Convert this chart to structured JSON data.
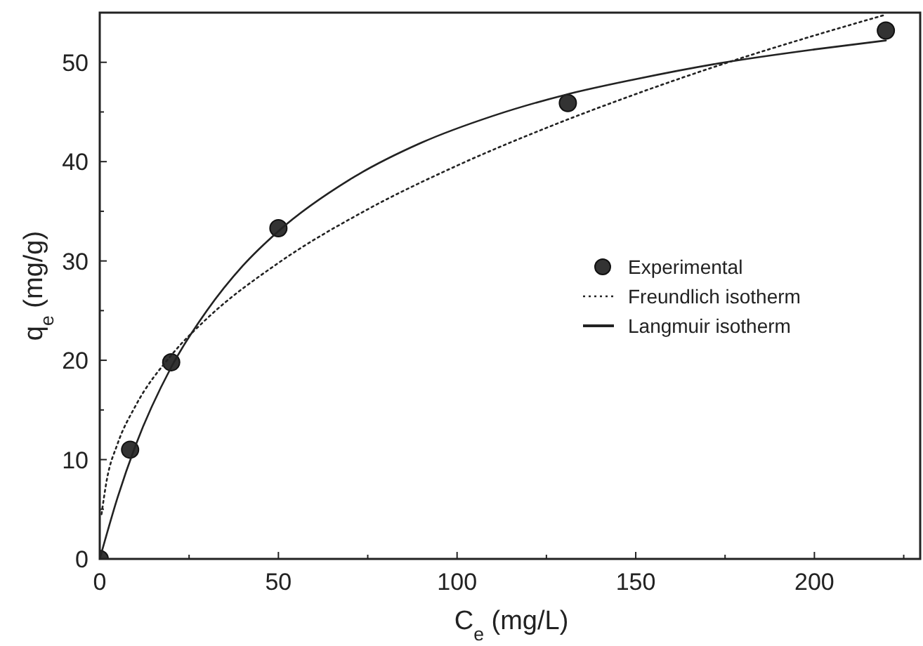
{
  "chart_data": {
    "type": "scatter",
    "xlabel": "C$_{e}$ (mg/L)",
    "ylabel": "q$_{e}$ (mg/g)",
    "xlim": [
      0,
      230
    ],
    "ylim": [
      0,
      55
    ],
    "xticks": [
      0,
      {
        "value": 25,
        "label": null
      },
      50,
      {
        "value": 75,
        "label": null
      },
      100,
      {
        "value": 125,
        "label": null
      },
      150,
      {
        "value": 175,
        "label": null
      },
      200,
      {
        "value": 225,
        "label": null
      }
    ],
    "yticks": [
      0,
      {
        "value": 5,
        "label": null
      },
      10,
      {
        "value": 15,
        "label": null
      },
      20,
      {
        "value": 25,
        "label": null
      },
      30,
      {
        "value": 35,
        "label": null
      },
      40,
      {
        "value": 45,
        "label": null
      },
      50
    ],
    "grid": false,
    "legend": "right",
    "series": [
      {
        "name": "Experimental",
        "color": "#333333",
        "marker": "circle",
        "x": [
          0,
          8.5,
          20,
          50,
          131,
          220
        ],
        "values": [
          0,
          11,
          19.8,
          33.3,
          45.9,
          53.2
        ]
      },
      {
        "name": "Freundlich isotherm",
        "type": "line",
        "color": "#222222",
        "marker": "none",
        "line_style": "dotted",
        "x": [
          0.5,
          2,
          5,
          10,
          20,
          30,
          50,
          75,
          100,
          125,
          150,
          175,
          200,
          220
        ],
        "values": [
          4.5,
          8,
          11.6,
          15.4,
          20.5,
          24.2,
          29.8,
          35.2,
          39.6,
          43.4,
          46.8,
          49.9,
          52.7,
          54.8
        ]
      },
      {
        "name": "Langmuir isotherm",
        "type": "line",
        "color": "#222222",
        "marker": "none",
        "line_style": "solid",
        "x": [
          0,
          5,
          10,
          20,
          30,
          40,
          50,
          70,
          90,
          110,
          130,
          150,
          175,
          200,
          220
        ],
        "values": [
          0,
          6.2,
          11.4,
          19.3,
          25,
          29.5,
          33,
          38.2,
          41.9,
          44.6,
          46.7,
          48.3,
          50,
          51.3,
          52.2
        ]
      }
    ]
  }
}
